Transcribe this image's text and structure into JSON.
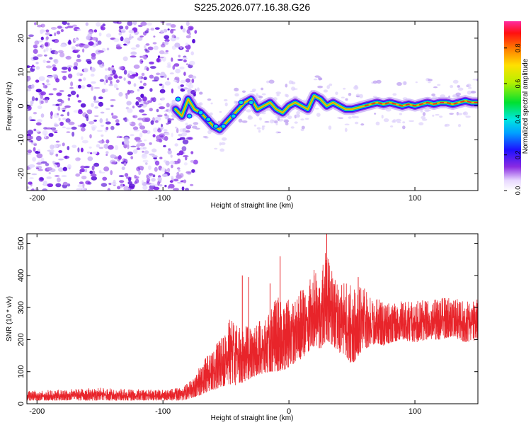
{
  "figure_title": "S225.2026.077.16.38.G26",
  "chart_data": [
    {
      "type": "heatmap",
      "title": "S225.2026.077.16.38.G26",
      "xlabel": "Height of straight line (km)",
      "ylabel": "Frequency (Hz)",
      "xlim": [
        -208,
        150
      ],
      "ylim": [
        -25,
        25
      ],
      "xticks": [
        -200,
        -100,
        0,
        100
      ],
      "yticks": [
        -20,
        -10,
        0,
        10,
        20
      ],
      "noise_region_x": [
        -208,
        -80
      ],
      "signal_ridge": {
        "x": [
          -90,
          -85,
          -80,
          -75,
          -70,
          -65,
          -60,
          -55,
          -50,
          -45,
          -40,
          -35,
          -30,
          -25,
          -20,
          -15,
          -10,
          -5,
          0,
          5,
          10,
          15,
          20,
          25,
          30,
          35,
          40,
          45,
          50,
          55,
          60,
          65,
          70,
          75,
          80,
          85,
          90,
          95,
          100,
          105,
          110,
          115,
          120,
          125,
          130,
          135,
          140,
          145,
          150
        ],
        "frequency_hz": [
          -1,
          -3,
          2,
          -1,
          -2,
          -4,
          -6,
          -7,
          -5,
          -3,
          -1,
          1,
          2,
          -1,
          0,
          1,
          -1,
          -2,
          0,
          1,
          0,
          -1,
          3,
          2,
          0,
          1,
          0,
          -1,
          -1,
          -0.5,
          0,
          0.5,
          1,
          0.5,
          1,
          0.5,
          0,
          0.5,
          0,
          0.5,
          1,
          0.5,
          1,
          1,
          0.5,
          1,
          1.5,
          1,
          1
        ]
      },
      "colorbar": {
        "label": "Normalized spectral amplitude",
        "range": [
          0.0,
          0.95
        ],
        "ticks": [
          "0.0",
          "0.2",
          "0.4",
          "0.6",
          "0.8"
        ],
        "tick_values": [
          0.0,
          0.2,
          0.4,
          0.6,
          0.8
        ]
      }
    },
    {
      "type": "line",
      "xlabel": "Height of straight line (km)",
      "ylabel": "SNR (10 * v/v)",
      "xlim": [
        -208,
        150
      ],
      "ylim": [
        0,
        530
      ],
      "xticks": [
        -200,
        -100,
        0,
        100
      ],
      "yticks": [
        0,
        100,
        200,
        300,
        400,
        500
      ],
      "series": [
        {
          "name": "SNR",
          "color": "#e8242a",
          "x": [
            -208,
            -180,
            -150,
            -120,
            -100,
            -85,
            -75,
            -65,
            -55,
            -45,
            -40,
            -35,
            -30,
            -25,
            -20,
            -15,
            -10,
            -5,
            0,
            5,
            10,
            15,
            20,
            25,
            30,
            35,
            40,
            45,
            50,
            55,
            60,
            65,
            70,
            75,
            80,
            90,
            100,
            110,
            120,
            130,
            140,
            150
          ],
          "envelope_low": [
            10,
            10,
            10,
            10,
            10,
            10,
            20,
            35,
            50,
            55,
            60,
            70,
            80,
            90,
            95,
            100,
            100,
            105,
            110,
            130,
            140,
            160,
            180,
            170,
            200,
            180,
            160,
            150,
            120,
            150,
            170,
            180,
            190,
            180,
            190,
            200,
            190,
            200,
            200,
            210,
            190,
            200
          ],
          "envelope_high": [
            40,
            45,
            50,
            45,
            45,
            50,
            90,
            150,
            200,
            280,
            250,
            240,
            260,
            270,
            250,
            300,
            340,
            310,
            330,
            320,
            360,
            370,
            420,
            380,
            520,
            400,
            360,
            390,
            370,
            360,
            380,
            330,
            330,
            320,
            320,
            320,
            320,
            330,
            330,
            330,
            320,
            330
          ],
          "peaks": [
            {
              "x": -37,
              "y": 400
            },
            {
              "x": -32,
              "y": 395
            },
            {
              "x": -15,
              "y": 375
            },
            {
              "x": -7,
              "y": 460
            },
            {
              "x": 30,
              "y": 530
            },
            {
              "x": 55,
              "y": 395
            },
            {
              "x": 20,
              "y": 400
            }
          ]
        }
      ]
    }
  ]
}
